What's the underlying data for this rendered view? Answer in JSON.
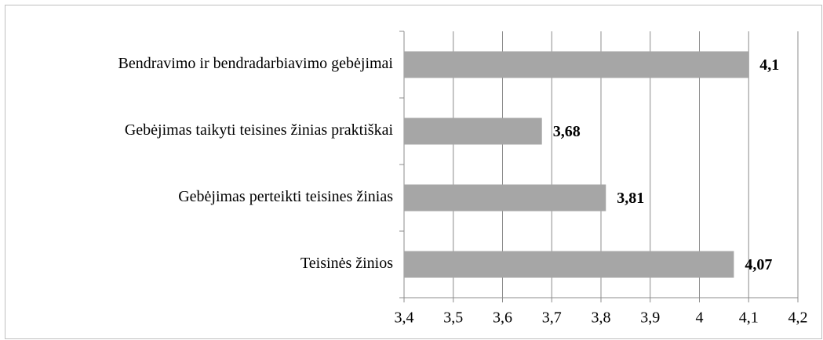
{
  "chart_data": {
    "type": "bar",
    "orientation": "horizontal",
    "categories": [
      "Bendravimo ir bendradarbiavimo gebėjimai",
      "Gebėjimas taikyti teisines žinias praktiškai",
      "Gebėjimas perteikti teisines žinias",
      "Teisinės žinios"
    ],
    "values": [
      4.1,
      3.68,
      3.81,
      4.07
    ],
    "value_labels": [
      "4,1",
      "3,68",
      "3,81",
      "4,07"
    ],
    "color": "#a6a6a6",
    "xlim": [
      3.4,
      4.2
    ],
    "xticks": [
      {
        "value": 3.4,
        "label": "3,4"
      },
      {
        "value": 3.5,
        "label": "3,5"
      },
      {
        "value": 3.6,
        "label": "3,6"
      },
      {
        "value": 3.7,
        "label": "3,7"
      },
      {
        "value": 3.8,
        "label": "3,8"
      },
      {
        "value": 3.9,
        "label": "3,9"
      },
      4,
      {
        "value": 4.1,
        "label": "4,1"
      },
      {
        "value": 4.2,
        "label": "4,2"
      }
    ],
    "grid": true
  }
}
